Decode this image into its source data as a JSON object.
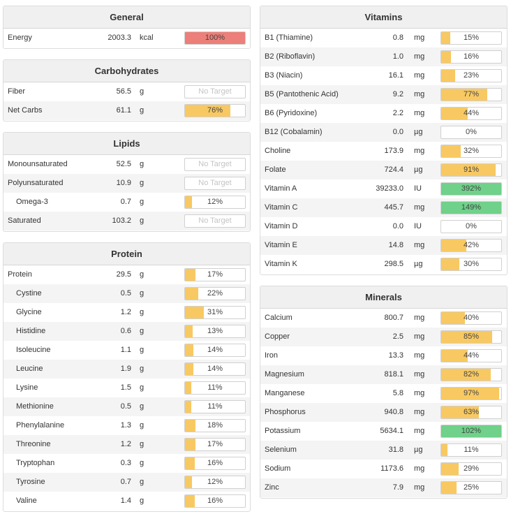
{
  "colors": {
    "over": "#ec7f79",
    "partial": "#f8c962",
    "full": "#6fd18a"
  },
  "general": {
    "title": "General",
    "rows": [
      {
        "name": "Energy",
        "amount": "2003.3",
        "unit": "kcal",
        "pct": "100%",
        "level": 1.0,
        "status": "over"
      }
    ]
  },
  "carbs": {
    "title": "Carbohydrates",
    "rows": [
      {
        "name": "Fiber",
        "amount": "56.5",
        "unit": "g",
        "pct": "No Target",
        "level": 0,
        "status": "none"
      },
      {
        "name": "Net Carbs",
        "amount": "61.1",
        "unit": "g",
        "pct": "76%",
        "level": 0.76,
        "status": "partial"
      }
    ]
  },
  "lipids": {
    "title": "Lipids",
    "rows": [
      {
        "name": "Monounsaturated",
        "amount": "52.5",
        "unit": "g",
        "pct": "No Target",
        "level": 0,
        "status": "none"
      },
      {
        "name": "Polyunsaturated",
        "amount": "10.9",
        "unit": "g",
        "pct": "No Target",
        "level": 0,
        "status": "none"
      },
      {
        "name": "Omega-3",
        "amount": "0.7",
        "unit": "g",
        "pct": "12%",
        "level": 0.12,
        "status": "partial",
        "indent": true
      },
      {
        "name": "Saturated",
        "amount": "103.2",
        "unit": "g",
        "pct": "No Target",
        "level": 0,
        "status": "none"
      }
    ]
  },
  "protein": {
    "title": "Protein",
    "rows": [
      {
        "name": "Protein",
        "amount": "29.5",
        "unit": "g",
        "pct": "17%",
        "level": 0.17,
        "status": "partial"
      },
      {
        "name": "Cystine",
        "amount": "0.5",
        "unit": "g",
        "pct": "22%",
        "level": 0.22,
        "status": "partial",
        "indent": true
      },
      {
        "name": "Glycine",
        "amount": "1.2",
        "unit": "g",
        "pct": "31%",
        "level": 0.31,
        "status": "partial",
        "indent": true
      },
      {
        "name": "Histidine",
        "amount": "0.6",
        "unit": "g",
        "pct": "13%",
        "level": 0.13,
        "status": "partial",
        "indent": true
      },
      {
        "name": "Isoleucine",
        "amount": "1.1",
        "unit": "g",
        "pct": "14%",
        "level": 0.14,
        "status": "partial",
        "indent": true
      },
      {
        "name": "Leucine",
        "amount": "1.9",
        "unit": "g",
        "pct": "14%",
        "level": 0.14,
        "status": "partial",
        "indent": true
      },
      {
        "name": "Lysine",
        "amount": "1.5",
        "unit": "g",
        "pct": "11%",
        "level": 0.11,
        "status": "partial",
        "indent": true
      },
      {
        "name": "Methionine",
        "amount": "0.5",
        "unit": "g",
        "pct": "11%",
        "level": 0.11,
        "status": "partial",
        "indent": true
      },
      {
        "name": "Phenylalanine",
        "amount": "1.3",
        "unit": "g",
        "pct": "18%",
        "level": 0.18,
        "status": "partial",
        "indent": true
      },
      {
        "name": "Threonine",
        "amount": "1.2",
        "unit": "g",
        "pct": "17%",
        "level": 0.17,
        "status": "partial",
        "indent": true
      },
      {
        "name": "Tryptophan",
        "amount": "0.3",
        "unit": "g",
        "pct": "16%",
        "level": 0.16,
        "status": "partial",
        "indent": true
      },
      {
        "name": "Tyrosine",
        "amount": "0.7",
        "unit": "g",
        "pct": "12%",
        "level": 0.12,
        "status": "partial",
        "indent": true
      },
      {
        "name": "Valine",
        "amount": "1.4",
        "unit": "g",
        "pct": "16%",
        "level": 0.16,
        "status": "partial",
        "indent": true
      }
    ]
  },
  "vitamins": {
    "title": "Vitamins",
    "rows": [
      {
        "name": "B1 (Thiamine)",
        "amount": "0.8",
        "unit": "mg",
        "pct": "15%",
        "level": 0.15,
        "status": "partial"
      },
      {
        "name": "B2 (Riboflavin)",
        "amount": "1.0",
        "unit": "mg",
        "pct": "16%",
        "level": 0.16,
        "status": "partial"
      },
      {
        "name": "B3 (Niacin)",
        "amount": "16.1",
        "unit": "mg",
        "pct": "23%",
        "level": 0.23,
        "status": "partial"
      },
      {
        "name": "B5 (Pantothenic Acid)",
        "amount": "9.2",
        "unit": "mg",
        "pct": "77%",
        "level": 0.77,
        "status": "partial"
      },
      {
        "name": "B6 (Pyridoxine)",
        "amount": "2.2",
        "unit": "mg",
        "pct": "44%",
        "level": 0.44,
        "status": "partial"
      },
      {
        "name": "B12 (Cobalamin)",
        "amount": "0.0",
        "unit": "µg",
        "pct": "0%",
        "level": 0,
        "status": "partial"
      },
      {
        "name": "Choline",
        "amount": "173.9",
        "unit": "mg",
        "pct": "32%",
        "level": 0.32,
        "status": "partial"
      },
      {
        "name": "Folate",
        "amount": "724.4",
        "unit": "µg",
        "pct": "91%",
        "level": 0.91,
        "status": "partial"
      },
      {
        "name": "Vitamin A",
        "amount": "39233.0",
        "unit": "IU",
        "pct": "392%",
        "level": 1.0,
        "status": "full"
      },
      {
        "name": "Vitamin C",
        "amount": "445.7",
        "unit": "mg",
        "pct": "149%",
        "level": 1.0,
        "status": "full"
      },
      {
        "name": "Vitamin D",
        "amount": "0.0",
        "unit": "IU",
        "pct": "0%",
        "level": 0,
        "status": "partial"
      },
      {
        "name": "Vitamin E",
        "amount": "14.8",
        "unit": "mg",
        "pct": "42%",
        "level": 0.42,
        "status": "partial"
      },
      {
        "name": "Vitamin K",
        "amount": "298.5",
        "unit": "µg",
        "pct": "30%",
        "level": 0.3,
        "status": "partial"
      }
    ]
  },
  "minerals": {
    "title": "Minerals",
    "rows": [
      {
        "name": "Calcium",
        "amount": "800.7",
        "unit": "mg",
        "pct": "40%",
        "level": 0.4,
        "status": "partial"
      },
      {
        "name": "Copper",
        "amount": "2.5",
        "unit": "mg",
        "pct": "85%",
        "level": 0.85,
        "status": "partial"
      },
      {
        "name": "Iron",
        "amount": "13.3",
        "unit": "mg",
        "pct": "44%",
        "level": 0.44,
        "status": "partial"
      },
      {
        "name": "Magnesium",
        "amount": "818.1",
        "unit": "mg",
        "pct": "82%",
        "level": 0.82,
        "status": "partial"
      },
      {
        "name": "Manganese",
        "amount": "5.8",
        "unit": "mg",
        "pct": "97%",
        "level": 0.97,
        "status": "partial"
      },
      {
        "name": "Phosphorus",
        "amount": "940.8",
        "unit": "mg",
        "pct": "63%",
        "level": 0.63,
        "status": "partial"
      },
      {
        "name": "Potassium",
        "amount": "5634.1",
        "unit": "mg",
        "pct": "102%",
        "level": 1.0,
        "status": "full"
      },
      {
        "name": "Selenium",
        "amount": "31.8",
        "unit": "µg",
        "pct": "11%",
        "level": 0.11,
        "status": "partial"
      },
      {
        "name": "Sodium",
        "amount": "1173.6",
        "unit": "mg",
        "pct": "29%",
        "level": 0.29,
        "status": "partial"
      },
      {
        "name": "Zinc",
        "amount": "7.9",
        "unit": "mg",
        "pct": "25%",
        "level": 0.25,
        "status": "partial"
      }
    ]
  }
}
